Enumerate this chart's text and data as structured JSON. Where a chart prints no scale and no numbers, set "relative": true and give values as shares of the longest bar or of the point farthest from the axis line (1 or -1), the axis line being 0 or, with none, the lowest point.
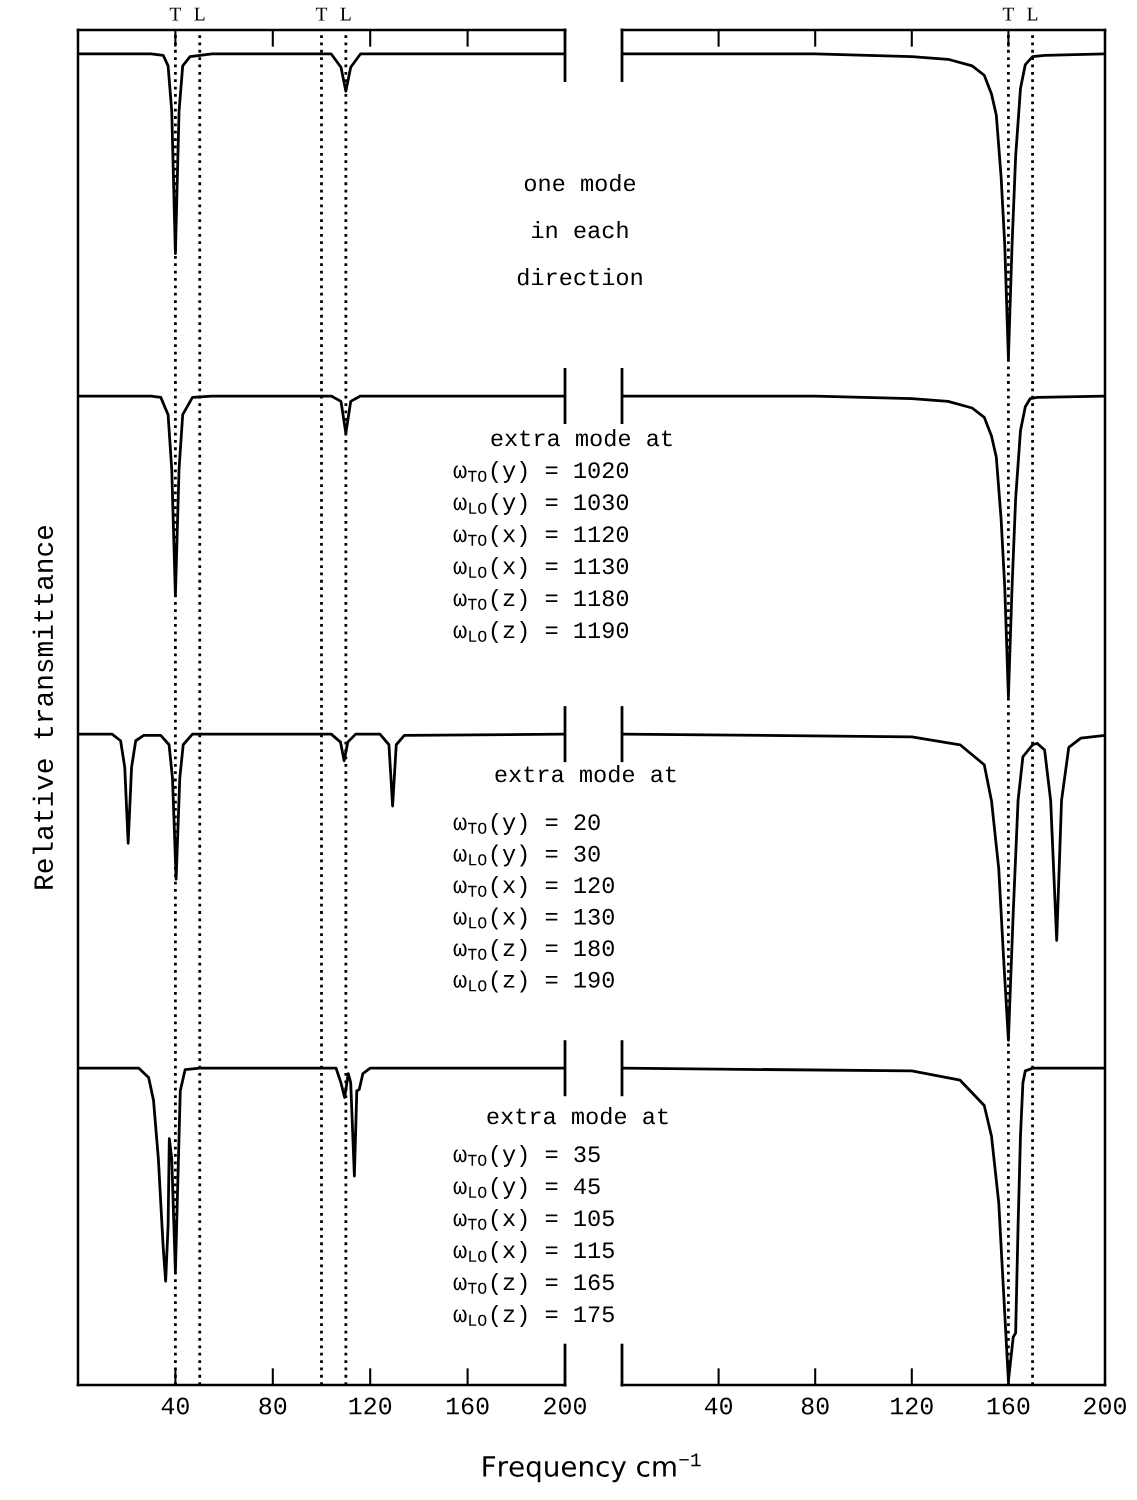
{
  "chart_data": [
    {
      "type": "line",
      "relative": true,
      "ylabel": "Relative transmittance",
      "xlabel": "Frequency cm$^{−1}$",
      "xlim": [
        0,
        200
      ],
      "xticks": [
        40,
        80,
        120,
        160,
        200
      ],
      "series": [
        {
          "color": "#000000",
          "x": [
            0,
            30,
            35,
            37,
            38.5,
            40,
            41.5,
            43,
            46,
            55,
            104,
            108,
            110,
            112,
            116,
            200
          ],
          "values": [
            1.0,
            1.0,
            0.999,
            0.991,
            0.957,
            0.85,
            0.957,
            0.991,
            0.998,
            1.0,
            1.0,
            0.99,
            0.972,
            0.99,
            1.0,
            1.0
          ]
        },
        {
          "color": "#000000",
          "x": [
            0,
            30,
            34,
            37,
            38.5,
            40,
            41.5,
            43,
            47,
            55,
            104,
            108,
            110,
            112,
            116,
            200
          ],
          "values": [
            0.743,
            0.743,
            0.742,
            0.729,
            0.688,
            0.593,
            0.688,
            0.729,
            0.742,
            0.743,
            0.743,
            0.739,
            0.715,
            0.739,
            0.743,
            0.743
          ]
        },
        {
          "color": "#000000",
          "x": [
            0,
            14,
            17.5,
            19.2,
            20.6,
            22,
            23.7,
            27,
            34,
            37.4,
            38.8,
            40.3,
            41.8,
            43.2,
            47,
            104,
            107.8,
            109.3,
            110.8,
            114,
            124,
            127.7,
            129.2,
            130.7,
            134,
            200
          ],
          "values": [
            0.489,
            0.489,
            0.484,
            0.464,
            0.407,
            0.464,
            0.484,
            0.488,
            0.488,
            0.481,
            0.456,
            0.38,
            0.456,
            0.481,
            0.489,
            0.489,
            0.483,
            0.469,
            0.483,
            0.489,
            0.489,
            0.481,
            0.435,
            0.481,
            0.488,
            0.489
          ]
        },
        {
          "color": "#000000",
          "x": [
            0,
            25,
            29,
            31,
            33,
            35,
            36,
            37,
            37.5,
            38.5,
            40,
            41,
            42,
            44,
            50,
            106,
            108,
            109.5,
            111,
            112,
            113.5,
            114.5,
            115.5,
            117,
            120,
            200
          ],
          "values": [
            0.238,
            0.238,
            0.231,
            0.214,
            0.17,
            0.103,
            0.078,
            0.12,
            0.185,
            0.17,
            0.085,
            0.153,
            0.221,
            0.237,
            0.238,
            0.238,
            0.227,
            0.216,
            0.234,
            0.227,
            0.157,
            0.221,
            0.222,
            0.234,
            0.238,
            0.238
          ]
        }
      ],
      "ref_lines": [
        {
          "axis": "x",
          "value": 40,
          "label": "T",
          "color": "#000000",
          "line_style": "dotted"
        },
        {
          "axis": "x",
          "value": 50,
          "label": "L",
          "color": "#000000",
          "line_style": "dotted"
        },
        {
          "axis": "x",
          "value": 100,
          "label": "T",
          "color": "#000000",
          "line_style": "dotted"
        },
        {
          "axis": "x",
          "value": 110,
          "label": "L",
          "color": "#000000",
          "line_style": "dotted"
        }
      ],
      "annotations": [
        "one mode",
        "in each",
        "direction",
        "extra mode at",
        "ω$_{TO}$(y) = 1020",
        "ω$_{LO}$(y) = 1030",
        "ω$_{TO}$(x) = 1120",
        "ω$_{LO}$(x) = 1130",
        "ω$_{TO}$(z) = 1180",
        "ω$_{LO}$(z) = 1190",
        "extra mode at",
        "ω$_{TO}$(y) = 20",
        "ω$_{LO}$(y) = 30",
        "ω$_{TO}$(x) = 120",
        "ω$_{LO}$(x) = 130",
        "ω$_{TO}$(z) = 180",
        "ω$_{LO}$(z) = 190",
        "extra mode at",
        "ω$_{TO}$(y) = 35",
        "ω$_{LO}$(y) = 45",
        "ω$_{TO}$(x) = 105",
        "ω$_{LO}$(x) = 115",
        "ω$_{TO}$(z) = 165",
        "ω$_{LO}$(z) = 175"
      ]
    },
    {
      "type": "line",
      "relative": true,
      "xlim": [
        0,
        200
      ],
      "xticks": [
        40,
        80,
        120,
        160,
        200
      ],
      "series": [
        {
          "color": "#000000",
          "x": [
            0,
            80,
            120,
            135,
            145,
            150,
            153,
            155,
            157,
            158.5,
            160,
            161.5,
            163,
            165,
            167,
            170,
            175,
            200
          ],
          "values": [
            1.0,
            1.0,
            0.998,
            0.996,
            0.991,
            0.984,
            0.97,
            0.954,
            0.907,
            0.856,
            0.771,
            0.856,
            0.923,
            0.974,
            0.992,
            0.998,
            0.999,
            1.0
          ]
        },
        {
          "color": "#000000",
          "x": [
            0,
            80,
            120,
            135,
            145,
            150,
            153,
            155,
            157,
            158.5,
            160,
            161.5,
            163,
            165,
            167,
            169,
            172,
            200
          ],
          "values": [
            0.743,
            0.743,
            0.741,
            0.739,
            0.734,
            0.727,
            0.713,
            0.697,
            0.65,
            0.599,
            0.517,
            0.599,
            0.666,
            0.717,
            0.735,
            0.741,
            0.742,
            0.743
          ]
        },
        {
          "color": "#000000",
          "x": [
            0,
            120,
            140,
            150,
            153,
            156,
            158,
            160,
            162,
            164,
            166,
            170,
            172,
            175,
            177.5,
            180,
            182,
            185,
            190,
            200
          ],
          "values": [
            0.489,
            0.487,
            0.481,
            0.466,
            0.439,
            0.388,
            0.321,
            0.259,
            0.355,
            0.439,
            0.472,
            0.481,
            0.482,
            0.477,
            0.439,
            0.334,
            0.439,
            0.479,
            0.486,
            0.488
          ]
        },
        {
          "color": "#000000",
          "x": [
            0,
            120,
            140,
            150,
            153,
            156,
            158,
            160,
            162,
            163,
            164,
            165,
            166,
            167,
            170,
            200
          ],
          "values": [
            0.238,
            0.236,
            0.229,
            0.21,
            0.187,
            0.137,
            0.07,
            0.003,
            0.036,
            0.039,
            0.119,
            0.187,
            0.227,
            0.236,
            0.238,
            0.238
          ]
        }
      ],
      "ref_lines": [
        {
          "axis": "x",
          "value": 160,
          "label": "T",
          "color": "#000000",
          "line_style": "dotted"
        },
        {
          "axis": "x",
          "value": 170,
          "label": "L",
          "color": "#000000",
          "line_style": "dotted"
        }
      ]
    }
  ]
}
